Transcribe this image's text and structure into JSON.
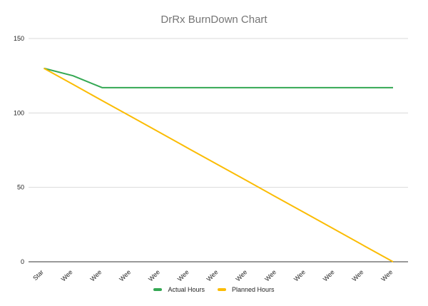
{
  "chart_data": {
    "type": "line",
    "title": "DrRx BurnDown Chart",
    "xlabel": "",
    "ylabel": "",
    "categories": [
      "Star",
      "Wee",
      "Wee",
      "Wee",
      "Wee",
      "Wee",
      "Wee",
      "Wee",
      "Wee",
      "Wee",
      "Wee",
      "Wee",
      "Wee"
    ],
    "ylim": [
      0,
      150
    ],
    "yticks": [
      "0",
      "50",
      "100",
      "150"
    ],
    "grid": true,
    "legend_position": "bottom",
    "series": [
      {
        "name": "Actual Hours",
        "color": "#34a853",
        "values": [
          130,
          125,
          117,
          117,
          117,
          117,
          117,
          117,
          117,
          117,
          117,
          117,
          117
        ]
      },
      {
        "name": "Planned Hours",
        "color": "#fbbc04",
        "values": [
          130,
          119.2,
          108.3,
          97.5,
          86.7,
          75.8,
          65,
          54.2,
          43.3,
          32.5,
          21.7,
          10.8,
          0
        ]
      }
    ]
  }
}
